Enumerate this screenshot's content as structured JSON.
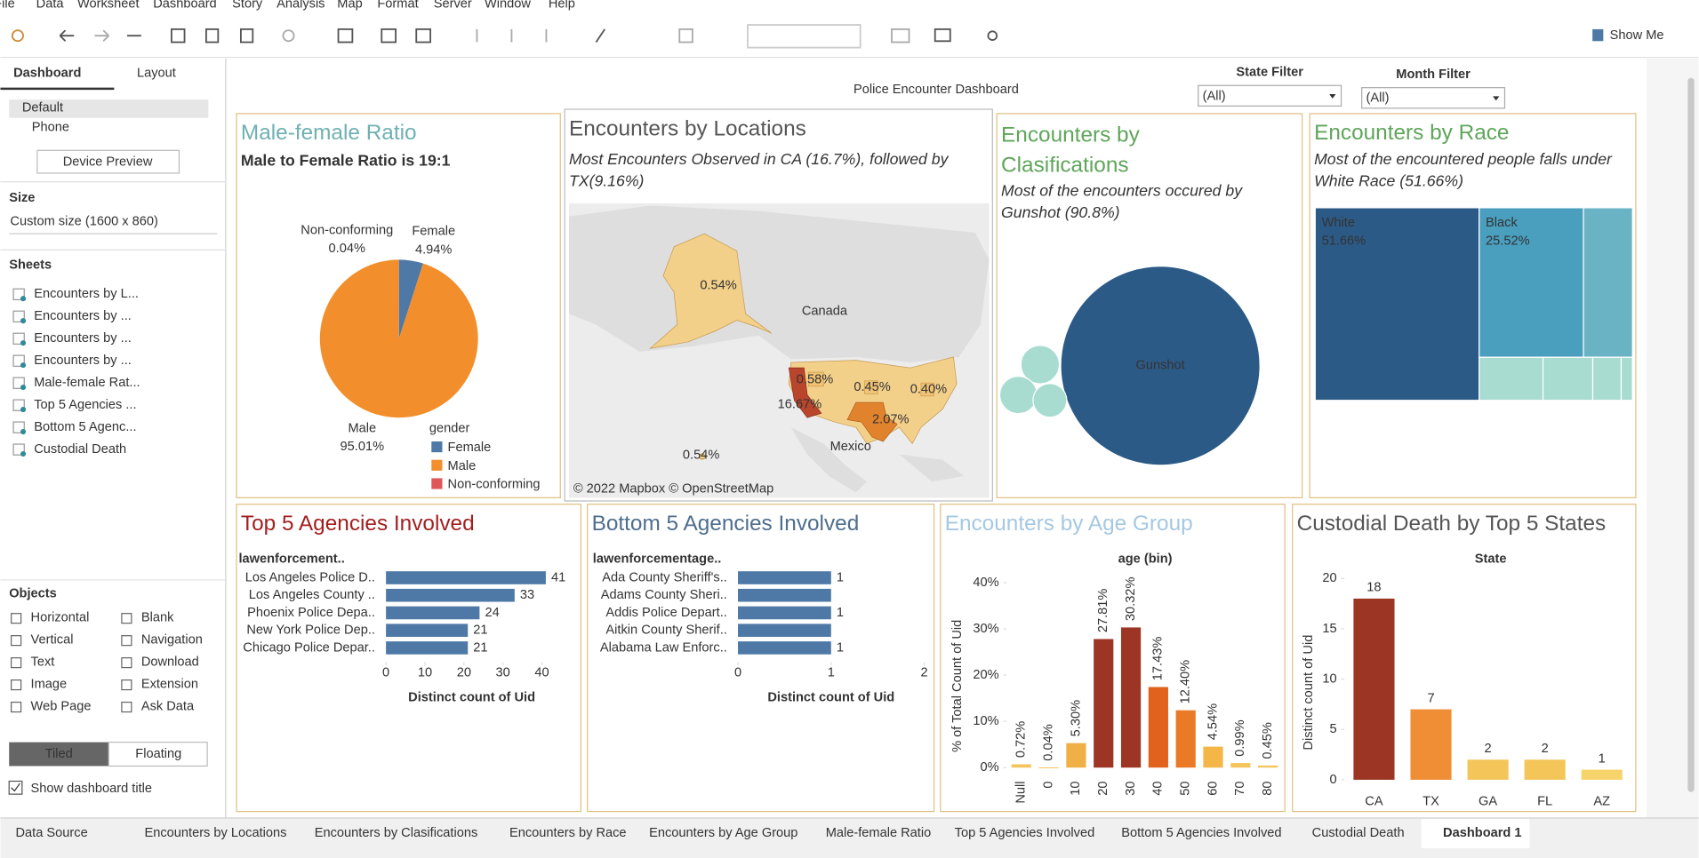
{
  "menu": [
    "File",
    "Data",
    "Worksheet",
    "Dashboard",
    "Story",
    "Analysis",
    "Map",
    "Format",
    "Server",
    "Window",
    "Help"
  ],
  "toolbar": {
    "show_me": "Show Me"
  },
  "sidebar": {
    "tabs": [
      "Dashboard",
      "Layout"
    ],
    "devices": [
      "Default",
      "Phone"
    ],
    "device_preview": "Device Preview",
    "size_heading": "Size",
    "size": "Custom size (1600 x 860)",
    "sheets_heading": "Sheets",
    "sheets": [
      "Encounters by L...",
      "Encounters by ...",
      "Encounters by ...",
      "Encounters by ...",
      "Male-female Rat...",
      "Top 5 Agencies ...",
      "Bottom 5 Agenc...",
      "Custodial Death"
    ],
    "objects_heading": "Objects",
    "objects": [
      "Horizontal",
      "Blank",
      "Vertical",
      "Navigation",
      "Text",
      "Download",
      "Image",
      "Extension",
      "Web Page",
      "Ask Data"
    ],
    "layout_modes": [
      "Tiled",
      "Floating"
    ],
    "show_title": "Show dashboard title"
  },
  "dashboard": {
    "title": "Police Encounter Dashboard",
    "filters": [
      {
        "label": "State Filter",
        "value": "(All)"
      },
      {
        "label": "Month Filter",
        "value": "(All)"
      }
    ]
  },
  "tabs": [
    "Data Source",
    "Encounters by Locations",
    "Encounters by Clasifications",
    "Encounters by Race",
    "Encounters by Age Group",
    "Male-female Ratio",
    "Top 5 Agencies Involved",
    "Bottom 5 Agencies Involved",
    "Custodial Death",
    "Dashboard 1"
  ],
  "chart_data": [
    {
      "type": "pie",
      "title": "Male-female Ratio",
      "subtitle": "Male to Female Ratio is 19:1",
      "categories": [
        "Female",
        "Male",
        "Non-conforming"
      ],
      "values": [
        4.94,
        95.01,
        0.04
      ],
      "value_labels": [
        "4.94%",
        "95.01%",
        "0.04%"
      ],
      "colors": [
        "#4e79a7",
        "#f28e2b",
        "#e15759"
      ],
      "legend_title": "gender"
    },
    {
      "type": "map",
      "title": "Encounters by Locations",
      "subtitle": "Most Encounters Observed in CA (16.7%), followed by TX(9.16%)",
      "categories": [
        null,
        null,
        null,
        null,
        null,
        null,
        null
      ],
      "values": [
        0.54,
        0.58,
        0.45,
        0.4,
        16.67,
        2.07,
        0.54
      ],
      "value_labels": [
        "0.54%",
        "0.58%",
        "0.45%",
        "0.40%",
        "16.67%",
        "2.07%",
        "0.54%"
      ],
      "annotations": [
        "Canada",
        "Mexico"
      ],
      "credit": "© 2022 Mapbox © OpenStreetMap"
    },
    {
      "type": "bubble",
      "title": "Encounters by Clasifications",
      "subtitle": "Most of the encounters occured by Gunshot (90.8%)",
      "categories": [
        "Gunshot",
        null,
        null,
        null
      ],
      "values": [
        90.8,
        3.4,
        3.2,
        2.6
      ],
      "colors": [
        "#2c5a86",
        "#a8dcd1",
        "#a8dcd1",
        "#a8dcd1"
      ]
    },
    {
      "type": "treemap",
      "title": "Encounters by Race",
      "subtitle": "Most of the encountered people falls under White Race (51.66%)",
      "categories": [
        "White",
        "Black",
        null,
        null,
        null,
        null,
        null
      ],
      "values": [
        51.66,
        25.52,
        12.0,
        4.5,
        3.5,
        2.0,
        0.8
      ],
      "value_labels": [
        "51.66%",
        "25.52%",
        null,
        null,
        null,
        null,
        null
      ],
      "colors": [
        "#2c5a86",
        "#4a9fbf",
        "#6ab3c4",
        "#a8dcd1",
        "#a8dcd1",
        "#a8dcd1",
        "#a8dcd1"
      ]
    },
    {
      "type": "bar",
      "orientation": "horizontal",
      "title": "Top 5 Agencies Involved",
      "column_header": "lawenforcement..",
      "categories": [
        "Los Angeles Police D..",
        "Los Angeles County ..",
        "Phoenix Police Depa..",
        "New York Police Dep..",
        "Chicago Police Depar.."
      ],
      "values": [
        41,
        33,
        24,
        21,
        21
      ],
      "color": "#4e79a7",
      "xlim": [
        0,
        44
      ],
      "xticks": [
        0,
        10,
        20,
        30,
        40
      ],
      "xlabel": "Distinct count of Uid"
    },
    {
      "type": "bar",
      "orientation": "horizontal",
      "title": "Bottom 5 Agencies Involved",
      "column_header": "lawenforcementage..",
      "categories": [
        "Ada County Sheriff's..",
        "Adams County Sheri..",
        "Addis Police Depart..",
        "Aitkin County Sherif..",
        "Alabama Law Enforc.."
      ],
      "values": [
        1,
        1,
        1,
        1,
        1
      ],
      "value_labels": [
        "1",
        null,
        "1",
        null,
        "1"
      ],
      "color": "#4e79a7",
      "xlim": [
        0,
        2
      ],
      "xticks": [
        0,
        1,
        2
      ],
      "xlabel": "Distinct count of Uid"
    },
    {
      "type": "bar",
      "orientation": "vertical",
      "title": "Encounters by Age Group",
      "column_header": "age (bin)",
      "categories": [
        "Null",
        "0",
        "10",
        "20",
        "30",
        "40",
        "50",
        "60",
        "70",
        "80"
      ],
      "values": [
        0.72,
        0.04,
        5.3,
        27.81,
        30.32,
        17.43,
        12.4,
        4.54,
        0.99,
        0.45
      ],
      "value_labels": [
        "0.72%",
        "0.04%",
        "5.30%",
        "27.81%",
        "30.32%",
        "17.43%",
        "12.40%",
        "4.54%",
        "0.99%",
        "0.45%"
      ],
      "colors": [
        "#f5c55b",
        "#f5c55b",
        "#f0b046",
        "#9c3524",
        "#9c3524",
        "#e0621d",
        "#ea7a25",
        "#f5b648",
        "#f5c55b",
        "#f5c55b"
      ],
      "ylim": [
        -2,
        42
      ],
      "yticks": [
        {
          "value": 0,
          "label": "0%"
        },
        {
          "value": 10,
          "label": "10%"
        },
        {
          "value": 20,
          "label": "20%"
        },
        {
          "value": 30,
          "label": "30%"
        },
        {
          "value": 40,
          "label": "40%"
        }
      ],
      "ylabel": "% of Total Count of Uid"
    },
    {
      "type": "bar",
      "orientation": "vertical",
      "title": "Custodial Death by Top 5 States",
      "column_header": "State",
      "categories": [
        "CA",
        "TX",
        "GA",
        "FL",
        "AZ"
      ],
      "values": [
        18,
        7,
        2,
        2,
        1
      ],
      "colors": [
        "#9c3524",
        "#ef8e35",
        "#f4c65a",
        "#f4c65a",
        "#f6d36b"
      ],
      "ylim": [
        -1,
        20.5
      ],
      "yticks": [
        0,
        5,
        10,
        15,
        20
      ],
      "ylabel": "Distinct count of Uid"
    }
  ]
}
